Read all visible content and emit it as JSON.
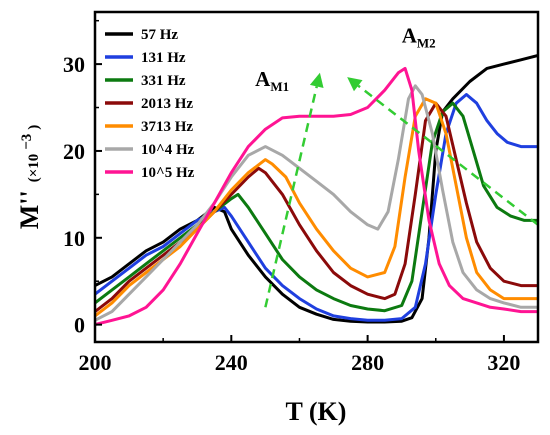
{
  "chart_data": {
    "type": "line",
    "xlabel": "T (K)",
    "ylabel": "M''",
    "ylabel_unit": "(×10",
    "ylabel_exp": "−3",
    "ylabel_close": ")",
    "xlim": [
      200,
      330
    ],
    "ylim": [
      -2,
      36
    ],
    "xticks": [
      200,
      240,
      280,
      320
    ],
    "yticks": [
      0,
      10,
      20,
      30
    ],
    "grid": false,
    "legend_position": "top-left",
    "series": [
      {
        "name": "57 Hz",
        "color": "#000000",
        "points": [
          [
            200,
            4.5
          ],
          [
            205,
            5.5
          ],
          [
            210,
            7
          ],
          [
            215,
            8.5
          ],
          [
            220,
            9.5
          ],
          [
            225,
            11
          ],
          [
            230,
            12
          ],
          [
            235,
            13.5
          ],
          [
            238,
            13
          ],
          [
            240,
            11
          ],
          [
            245,
            8
          ],
          [
            250,
            5.5
          ],
          [
            255,
            3.5
          ],
          [
            260,
            2
          ],
          [
            265,
            1.2
          ],
          [
            270,
            0.6
          ],
          [
            275,
            0.4
          ],
          [
            280,
            0.3
          ],
          [
            285,
            0.3
          ],
          [
            290,
            0.4
          ],
          [
            293,
            0.8
          ],
          [
            296,
            3
          ],
          [
            298,
            10
          ],
          [
            300,
            20
          ],
          [
            302,
            24.5
          ],
          [
            305,
            26
          ],
          [
            310,
            28
          ],
          [
            315,
            29.5
          ],
          [
            320,
            30
          ],
          [
            325,
            30.5
          ],
          [
            330,
            31
          ]
        ]
      },
      {
        "name": "131 Hz",
        "color": "#1f3fdf",
        "points": [
          [
            200,
            3.5
          ],
          [
            205,
            5
          ],
          [
            210,
            6.5
          ],
          [
            215,
            8
          ],
          [
            220,
            9
          ],
          [
            225,
            10.5
          ],
          [
            230,
            12
          ],
          [
            235,
            13
          ],
          [
            238,
            13.5
          ],
          [
            240,
            12.5
          ],
          [
            245,
            9.5
          ],
          [
            250,
            6.5
          ],
          [
            255,
            4.5
          ],
          [
            260,
            3
          ],
          [
            265,
            1.8
          ],
          [
            270,
            1
          ],
          [
            275,
            0.7
          ],
          [
            280,
            0.5
          ],
          [
            285,
            0.5
          ],
          [
            290,
            0.7
          ],
          [
            294,
            2
          ],
          [
            297,
            7
          ],
          [
            300,
            15
          ],
          [
            303,
            22
          ],
          [
            306,
            25.5
          ],
          [
            309,
            26.5
          ],
          [
            312,
            25.5
          ],
          [
            315,
            23.5
          ],
          [
            318,
            22
          ],
          [
            321,
            21
          ],
          [
            325,
            20.5
          ],
          [
            330,
            20.5
          ]
        ]
      },
      {
        "name": "331 Hz",
        "color": "#0c7a10",
        "points": [
          [
            200,
            2.5
          ],
          [
            205,
            4
          ],
          [
            210,
            5.5
          ],
          [
            215,
            7
          ],
          [
            220,
            8.5
          ],
          [
            225,
            10
          ],
          [
            230,
            11.5
          ],
          [
            235,
            13
          ],
          [
            240,
            14.5
          ],
          [
            242,
            15
          ],
          [
            245,
            13.5
          ],
          [
            250,
            10.5
          ],
          [
            255,
            7.5
          ],
          [
            260,
            5.5
          ],
          [
            265,
            4
          ],
          [
            270,
            3
          ],
          [
            275,
            2.2
          ],
          [
            280,
            1.8
          ],
          [
            285,
            1.6
          ],
          [
            290,
            2.2
          ],
          [
            293,
            5
          ],
          [
            296,
            13
          ],
          [
            299,
            21
          ],
          [
            302,
            24.5
          ],
          [
            305,
            25.5
          ],
          [
            308,
            24
          ],
          [
            311,
            20
          ],
          [
            314,
            16
          ],
          [
            318,
            13.5
          ],
          [
            322,
            12.5
          ],
          [
            326,
            12
          ],
          [
            330,
            12
          ]
        ]
      },
      {
        "name": "2013 Hz",
        "color": "#8b0a0a",
        "points": [
          [
            200,
            1.5
          ],
          [
            205,
            3
          ],
          [
            210,
            5
          ],
          [
            215,
            6.5
          ],
          [
            220,
            8
          ],
          [
            225,
            9.5
          ],
          [
            230,
            11
          ],
          [
            235,
            13
          ],
          [
            240,
            15
          ],
          [
            245,
            17
          ],
          [
            248,
            18
          ],
          [
            250,
            17.5
          ],
          [
            255,
            15
          ],
          [
            260,
            11.5
          ],
          [
            265,
            8.5
          ],
          [
            270,
            6
          ],
          [
            275,
            4.5
          ],
          [
            280,
            3.5
          ],
          [
            285,
            3
          ],
          [
            288,
            3.5
          ],
          [
            291,
            7
          ],
          [
            294,
            15
          ],
          [
            297,
            23.5
          ],
          [
            300,
            25.5
          ],
          [
            303,
            24
          ],
          [
            306,
            19
          ],
          [
            309,
            14
          ],
          [
            312,
            9.5
          ],
          [
            316,
            6.5
          ],
          [
            320,
            5
          ],
          [
            325,
            4.5
          ],
          [
            330,
            4.5
          ]
        ]
      },
      {
        "name": "3713 Hz",
        "color": "#ff8c00",
        "points": [
          [
            200,
            1
          ],
          [
            205,
            2.5
          ],
          [
            210,
            4.5
          ],
          [
            215,
            6
          ],
          [
            220,
            7.5
          ],
          [
            225,
            9
          ],
          [
            230,
            11
          ],
          [
            235,
            13
          ],
          [
            240,
            15.5
          ],
          [
            245,
            17.5
          ],
          [
            250,
            19
          ],
          [
            252,
            18.5
          ],
          [
            256,
            17
          ],
          [
            260,
            14
          ],
          [
            265,
            11
          ],
          [
            270,
            8.5
          ],
          [
            275,
            6.5
          ],
          [
            280,
            5.5
          ],
          [
            285,
            6
          ],
          [
            288,
            9
          ],
          [
            291,
            17
          ],
          [
            294,
            24
          ],
          [
            297,
            26
          ],
          [
            300,
            25.5
          ],
          [
            303,
            22
          ],
          [
            306,
            16
          ],
          [
            309,
            10
          ],
          [
            312,
            6
          ],
          [
            316,
            4
          ],
          [
            320,
            3
          ],
          [
            325,
            3
          ],
          [
            330,
            3
          ]
        ]
      },
      {
        "name": "10^4 Hz",
        "color": "#a8a8a8",
        "points": [
          [
            200,
            0.5
          ],
          [
            205,
            1.5
          ],
          [
            210,
            3.5
          ],
          [
            215,
            5.5
          ],
          [
            220,
            7.5
          ],
          [
            225,
            9.5
          ],
          [
            230,
            11.5
          ],
          [
            235,
            14
          ],
          [
            240,
            17
          ],
          [
            245,
            19.5
          ],
          [
            250,
            20.5
          ],
          [
            255,
            19.5
          ],
          [
            260,
            18
          ],
          [
            265,
            16.5
          ],
          [
            270,
            15
          ],
          [
            275,
            13
          ],
          [
            280,
            11.5
          ],
          [
            283,
            11
          ],
          [
            286,
            13
          ],
          [
            289,
            19
          ],
          [
            292,
            26
          ],
          [
            294,
            27.5
          ],
          [
            296,
            26.5
          ],
          [
            299,
            22
          ],
          [
            302,
            15.5
          ],
          [
            305,
            9.5
          ],
          [
            308,
            6
          ],
          [
            312,
            4
          ],
          [
            316,
            3
          ],
          [
            320,
            2.5
          ],
          [
            325,
            2
          ],
          [
            330,
            2
          ]
        ]
      },
      {
        "name": "10^5 Hz",
        "color": "#ff1493",
        "points": [
          [
            200,
            0
          ],
          [
            205,
            0.5
          ],
          [
            210,
            1
          ],
          [
            215,
            2
          ],
          [
            220,
            4
          ],
          [
            225,
            7
          ],
          [
            230,
            10.5
          ],
          [
            235,
            14
          ],
          [
            240,
            17.5
          ],
          [
            245,
            20.5
          ],
          [
            250,
            22.5
          ],
          [
            255,
            23.8
          ],
          [
            260,
            24
          ],
          [
            265,
            24
          ],
          [
            270,
            24
          ],
          [
            275,
            24.2
          ],
          [
            280,
            25
          ],
          [
            285,
            27
          ],
          [
            289,
            29
          ],
          [
            291,
            29.5
          ],
          [
            293,
            27
          ],
          [
            295,
            20
          ],
          [
            298,
            12
          ],
          [
            301,
            7
          ],
          [
            304,
            4.5
          ],
          [
            308,
            3
          ],
          [
            312,
            2.5
          ],
          [
            316,
            2
          ],
          [
            320,
            1.8
          ],
          [
            325,
            1.5
          ],
          [
            330,
            1.5
          ]
        ]
      }
    ],
    "annotations": [
      {
        "text": "A",
        "sub": "M1",
        "x": 247,
        "y": 27.5
      },
      {
        "text": "A",
        "sub": "M2",
        "x": 290,
        "y": 32.5
      }
    ],
    "arrows": [
      {
        "color": "#33cc33",
        "from": [
          250,
          2
        ],
        "to": [
          266,
          29
        ]
      },
      {
        "color": "#33cc33",
        "from": [
          330,
          11.5
        ],
        "to": [
          274,
          28.5
        ]
      }
    ]
  }
}
